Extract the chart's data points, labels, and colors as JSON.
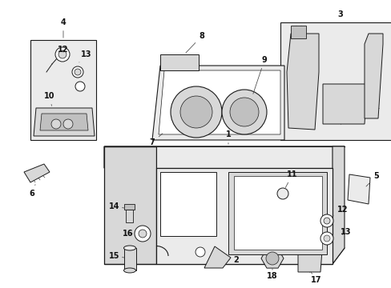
{
  "background_color": "#ffffff",
  "fig_width": 4.89,
  "fig_height": 3.6,
  "dpi": 100,
  "line_color": "#1a1a1a",
  "text_color": "#111111",
  "light_fill": "#ebebeb",
  "mid_fill": "#d8d8d8",
  "dark_fill": "#c0c0c0",
  "font_size": 7.0,
  "leader_lw": 0.55
}
